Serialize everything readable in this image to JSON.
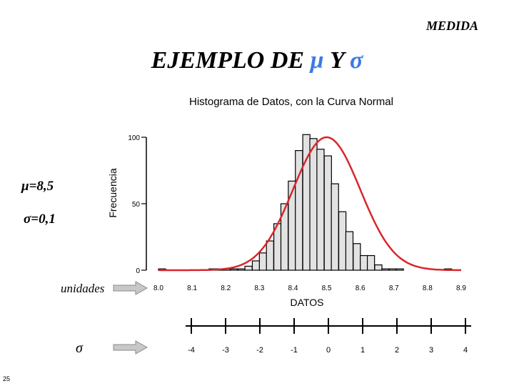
{
  "header": {
    "label": "MEDIDA"
  },
  "slide": {
    "title_text": "EJEMPLO DE ",
    "title_mu": "μ",
    "title_and": " Y ",
    "title_sigma": "σ",
    "mu_label": "μ=8,5",
    "sigma_label": "σ=0,1",
    "units_label": "unidades",
    "sigma_row_label": "σ",
    "page_number": "25"
  },
  "colors": {
    "bar_fill": "#e2e2e2",
    "bar_stroke": "#000000",
    "curve": "#d9262b",
    "accent": "#3d79e6",
    "arrow": "#c8c8c8"
  },
  "icons": {
    "arrow_units": "right-arrow-icon",
    "arrow_sigma": "right-arrow-icon"
  },
  "chart_data": {
    "type": "bar",
    "title": "Histograma de Datos, con la Curva Normal",
    "xlabel": "DATOS",
    "ylabel": "Frecuencia",
    "ylim": [
      0,
      100
    ],
    "xlim": [
      8.0,
      8.9
    ],
    "yticks": [
      "0",
      "50",
      "100"
    ],
    "xticks": [
      "8.0",
      "8.1",
      "8.2",
      "8.3",
      "8.4",
      "8.5",
      "8.6",
      "8.7",
      "8.8",
      "8.9"
    ],
    "bin_width": 0.0214,
    "bins": [
      {
        "x": 8.0,
        "value": 1
      },
      {
        "x": 8.15,
        "value": 1
      },
      {
        "x": 8.171,
        "value": 1
      },
      {
        "x": 8.193,
        "value": 1
      },
      {
        "x": 8.214,
        "value": 1
      },
      {
        "x": 8.236,
        "value": 1
      },
      {
        "x": 8.257,
        "value": 3
      },
      {
        "x": 8.279,
        "value": 7
      },
      {
        "x": 8.3,
        "value": 13
      },
      {
        "x": 8.321,
        "value": 22
      },
      {
        "x": 8.343,
        "value": 35
      },
      {
        "x": 8.364,
        "value": 50
      },
      {
        "x": 8.386,
        "value": 67
      },
      {
        "x": 8.407,
        "value": 90
      },
      {
        "x": 8.429,
        "value": 102
      },
      {
        "x": 8.45,
        "value": 99
      },
      {
        "x": 8.471,
        "value": 91
      },
      {
        "x": 8.493,
        "value": 86
      },
      {
        "x": 8.514,
        "value": 65
      },
      {
        "x": 8.536,
        "value": 44
      },
      {
        "x": 8.557,
        "value": 29
      },
      {
        "x": 8.579,
        "value": 20
      },
      {
        "x": 8.6,
        "value": 11
      },
      {
        "x": 8.621,
        "value": 11
      },
      {
        "x": 8.643,
        "value": 4
      },
      {
        "x": 8.664,
        "value": 1
      },
      {
        "x": 8.686,
        "value": 1
      },
      {
        "x": 8.707,
        "value": 1
      },
      {
        "x": 8.85,
        "value": 1
      }
    ],
    "normal_curve": {
      "mean": 8.5,
      "sd": 0.1,
      "peak": 100
    },
    "sigma_scale": {
      "ticks": [
        "-4",
        "-3",
        "-2",
        "-1",
        "0",
        "1",
        "2",
        "3",
        "4"
      ]
    }
  }
}
